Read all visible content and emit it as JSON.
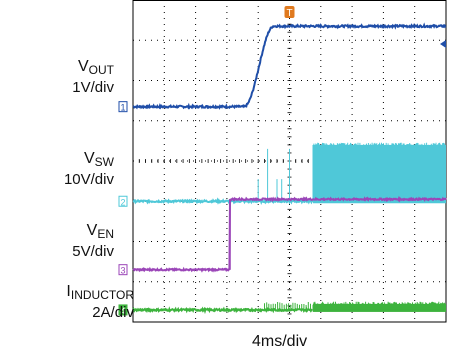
{
  "chart_data": {
    "type": "line",
    "xlabel": "4ms/div",
    "grid": true,
    "trigger_marker": "T",
    "channels": [
      {
        "id": "1",
        "name_main": "V",
        "name_sub": "OUT",
        "scale": "1V/div",
        "color": "#1f4ea8",
        "shape": {
          "kind": "ramp",
          "level_before_div": 5.35,
          "level_after_div": 7.35,
          "start_time_div": 3.55,
          "end_time_div": 4.5
        }
      },
      {
        "id": "2",
        "name_main": "V",
        "name_sub": "SW",
        "scale": "10V/div",
        "color": "#4fc8d8",
        "shape": {
          "kind": "switching",
          "level_before_div": 3.0,
          "burst_start_time_div": 5.75,
          "burst_top_div": 4.4,
          "pre_spikes_time_div": [
            4.0,
            4.3,
            4.6,
            4.75,
            5.0
          ]
        }
      },
      {
        "id": "3",
        "name_main": "V",
        "name_sub": "EN",
        "scale": "5V/div",
        "color": "#9b46b8",
        "shape": {
          "kind": "step",
          "level_before_div": 1.3,
          "level_after_div": 3.05,
          "step_time_div": 3.1
        }
      },
      {
        "id": "4",
        "name_main": "I",
        "name_sub": "INDUCTOR",
        "scale": "2A/div",
        "color": "#3db33d",
        "shape": {
          "kind": "switching",
          "level_before_div": 0.3,
          "burst_start_time_div": 5.75,
          "burst_top_div": 0.45
        }
      }
    ]
  }
}
